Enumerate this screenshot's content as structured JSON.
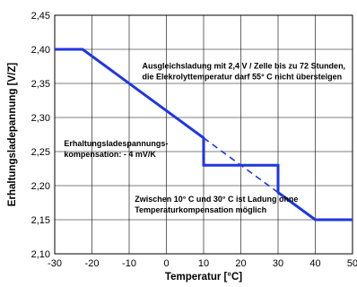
{
  "chart_data": {
    "type": "line",
    "xlabel": "Temperatur [°C]",
    "ylabel": "Erhaltungsladepannung [V/Z]",
    "xlim": [
      -30,
      50
    ],
    "ylim": [
      2.1,
      2.45
    ],
    "x_ticks": [
      "-30",
      "-20",
      "-10",
      "0",
      "10",
      "20",
      "30",
      "40",
      "50"
    ],
    "y_ticks": [
      "2,10",
      "2,15",
      "2,20",
      "2,25",
      "2,30",
      "2,35",
      "2,40",
      "2,45"
    ],
    "grid": true,
    "series": [
      {
        "style": "solid",
        "color": "#1f36e0",
        "points": [
          [
            -30,
            2.4
          ],
          [
            -22.5,
            2.4
          ],
          [
            10,
            2.27
          ],
          [
            10,
            2.23
          ],
          [
            30,
            2.23
          ],
          [
            30,
            2.19
          ],
          [
            40,
            2.15
          ],
          [
            50,
            2.15
          ]
        ]
      },
      {
        "style": "dashed",
        "color": "#1f36e0",
        "points": [
          [
            10,
            2.27
          ],
          [
            30,
            2.19
          ]
        ]
      }
    ],
    "annotations": [
      {
        "lines": [
          "Ausgleichsladung mit 2,4 V / Zelle bis zu 72 Stunden,",
          "die Elekrolyttemperatur darf 55° C nicht übersteigen"
        ],
        "x": -6.5,
        "y": 2.372
      },
      {
        "lines": [
          "Erhaltungsladespannungs-",
          "kompensation: - 4 mV/K"
        ],
        "x": -27.5,
        "y": 2.258
      },
      {
        "lines": [
          "Zwischen 10° C und 30° C ist Ladung ohne",
          "Temperaturkompensation möglich"
        ],
        "x": -8.5,
        "y": 2.176
      }
    ]
  }
}
